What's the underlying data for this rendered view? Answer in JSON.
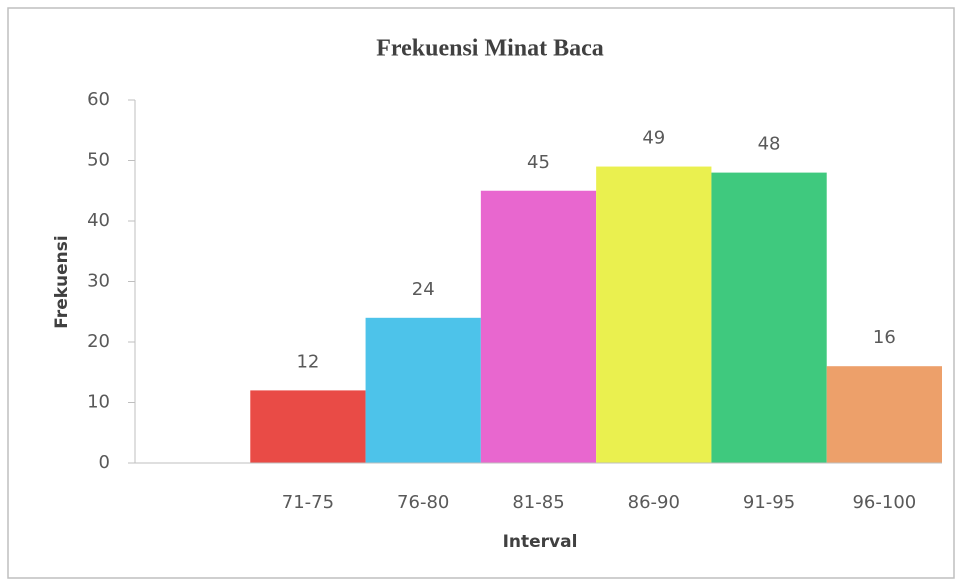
{
  "chart_data": {
    "type": "bar",
    "title": "Frekuensi Minat Baca",
    "x_label": "Interval",
    "y_label": "Frekuensi",
    "categories": [
      null,
      "71-75",
      "76-80",
      "81-85",
      "86-90",
      "91-95",
      "96-100"
    ],
    "values": [
      null,
      12,
      24,
      45,
      49,
      48,
      16
    ],
    "colors": [
      null,
      "#e94b46",
      "#4dc3ea",
      "#e867cf",
      "#eaf04f",
      "#3fc97e",
      "#eda06a"
    ],
    "ylim": [
      0,
      60
    ],
    "yticks": [
      0,
      10,
      20,
      30,
      40,
      50,
      60
    ],
    "grid": false
  }
}
